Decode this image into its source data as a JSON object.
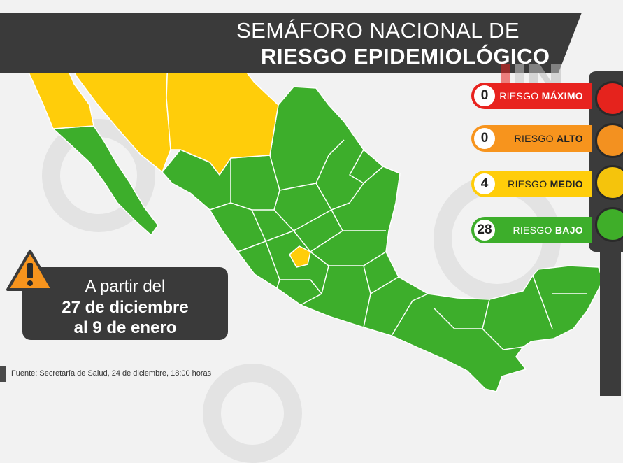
{
  "title": {
    "line1": "SEMÁFORO NACIONAL DE",
    "line2": "RIESGO EPIDEMIOLÓGICO"
  },
  "legend": [
    {
      "count": "0",
      "label_prefix": "RIESGO ",
      "label_level": "MÁXIMO",
      "color": "#e8231f"
    },
    {
      "count": "0",
      "label_prefix": "RIESGO ",
      "label_level": "ALTO",
      "color": "#f7941d"
    },
    {
      "count": "4",
      "label_prefix": "RIESGO ",
      "label_level": "MEDIO",
      "color": "#ffcd0a"
    },
    {
      "count": "28",
      "label_prefix": "RIESGO ",
      "label_level": "BAJO",
      "color": "#3dae2b"
    }
  ],
  "period": {
    "line1": "A partir del",
    "line2": "27 de diciembre",
    "line3": "al 9 de enero"
  },
  "source": "Fuente: Secretaría de Salud, 24 de diciembre, 18:00 horas",
  "map": {
    "yellow_states_color": "#ffcd0a",
    "green_states_color": "#3dae2b",
    "border_color": "#ffffff"
  }
}
